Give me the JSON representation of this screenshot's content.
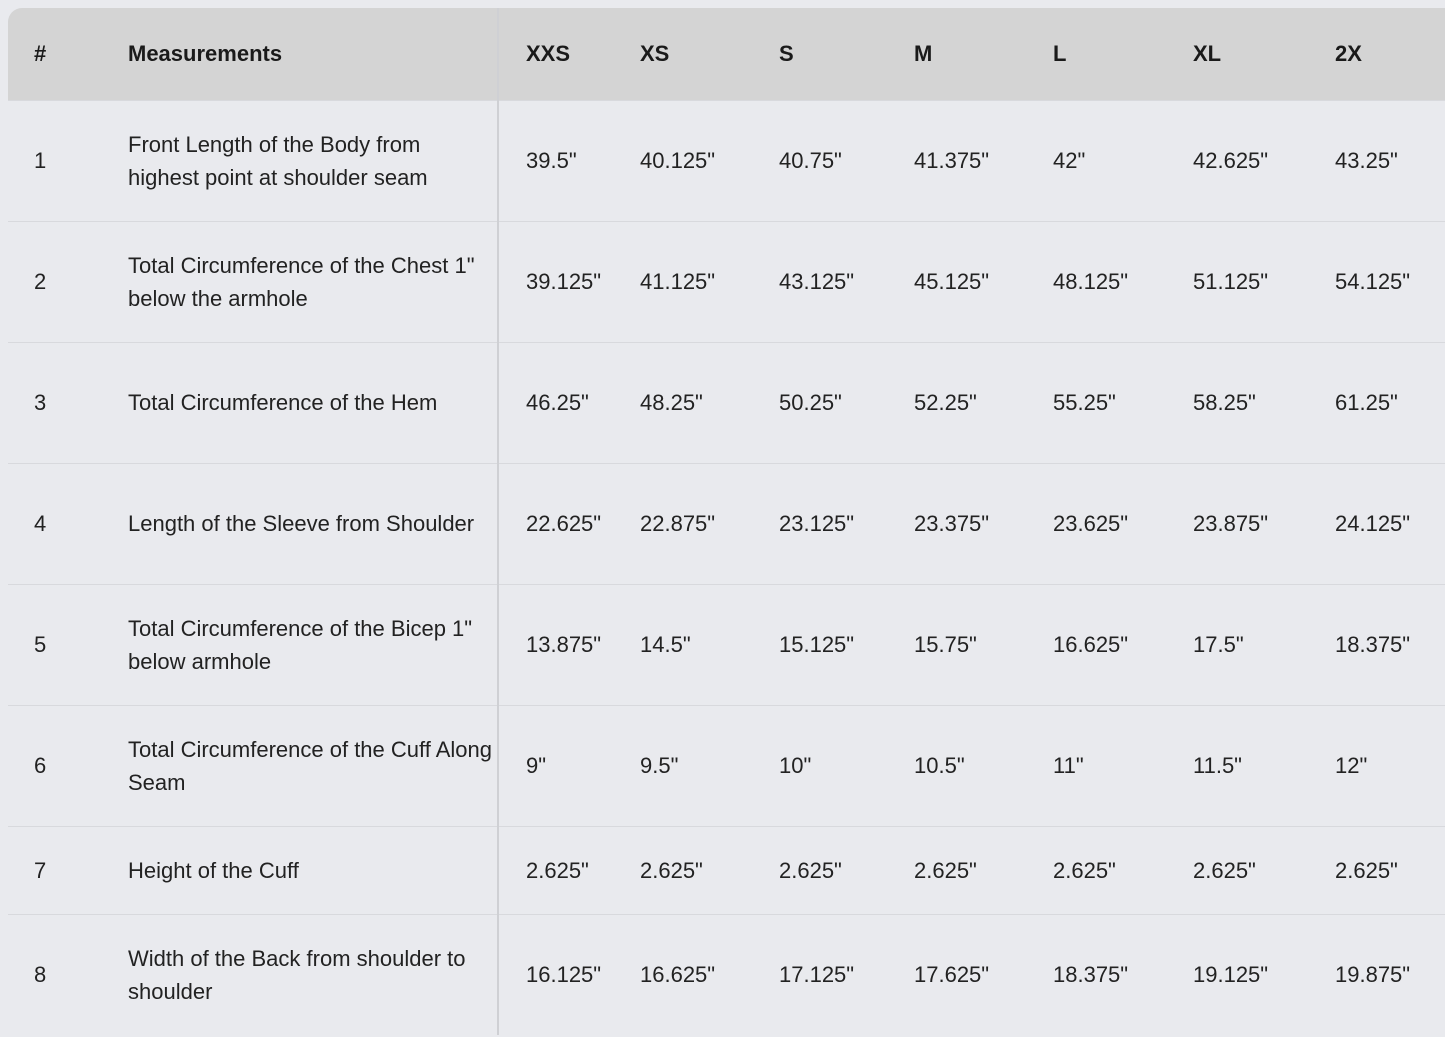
{
  "headers": [
    "#",
    "Measurements",
    "XXS",
    "XS",
    "S",
    "M",
    "L",
    "XL",
    "2X"
  ],
  "rows": [
    {
      "num": "1",
      "measurement": "Front Length of the Body from highest point at shoulder seam",
      "values": [
        "39.5\"",
        "40.125\"",
        "40.75\"",
        "41.375\"",
        "42\"",
        "42.625\"",
        "43.25\""
      ]
    },
    {
      "num": "2",
      "measurement": "Total Circumference of the Chest 1\" below the armhole",
      "values": [
        "39.125\"",
        "41.125\"",
        "43.125\"",
        "45.125\"",
        "48.125\"",
        "51.125\"",
        "54.125\""
      ]
    },
    {
      "num": "3",
      "measurement": "Total Circumference of the Hem",
      "values": [
        "46.25\"",
        "48.25\"",
        "50.25\"",
        "52.25\"",
        "55.25\"",
        "58.25\"",
        "61.25\""
      ]
    },
    {
      "num": "4",
      "measurement": "Length of the Sleeve from Shoulder",
      "values": [
        "22.625\"",
        "22.875\"",
        "23.125\"",
        "23.375\"",
        "23.625\"",
        "23.875\"",
        "24.125\""
      ]
    },
    {
      "num": "5",
      "measurement": "Total Circumference of the Bicep 1\" below armhole",
      "values": [
        "13.875\"",
        "14.5\"",
        "15.125\"",
        "15.75\"",
        "16.625\"",
        "17.5\"",
        "18.375\""
      ]
    },
    {
      "num": "6",
      "measurement": "Total Circumference of the Cuff Along Seam",
      "values": [
        "9\"",
        "9.5\"",
        "10\"",
        "10.5\"",
        "11\"",
        "11.5\"",
        "12\""
      ]
    },
    {
      "num": "7",
      "measurement": "Height of the Cuff",
      "values": [
        "2.625\"",
        "2.625\"",
        "2.625\"",
        "2.625\"",
        "2.625\"",
        "2.625\"",
        "2.625\""
      ]
    },
    {
      "num": "8",
      "measurement": "Width of the Back from shoulder to shoulder",
      "values": [
        "16.125\"",
        "16.625\"",
        "17.125\"",
        "17.625\"",
        "18.375\"",
        "19.125\"",
        "19.875\""
      ]
    }
  ]
}
